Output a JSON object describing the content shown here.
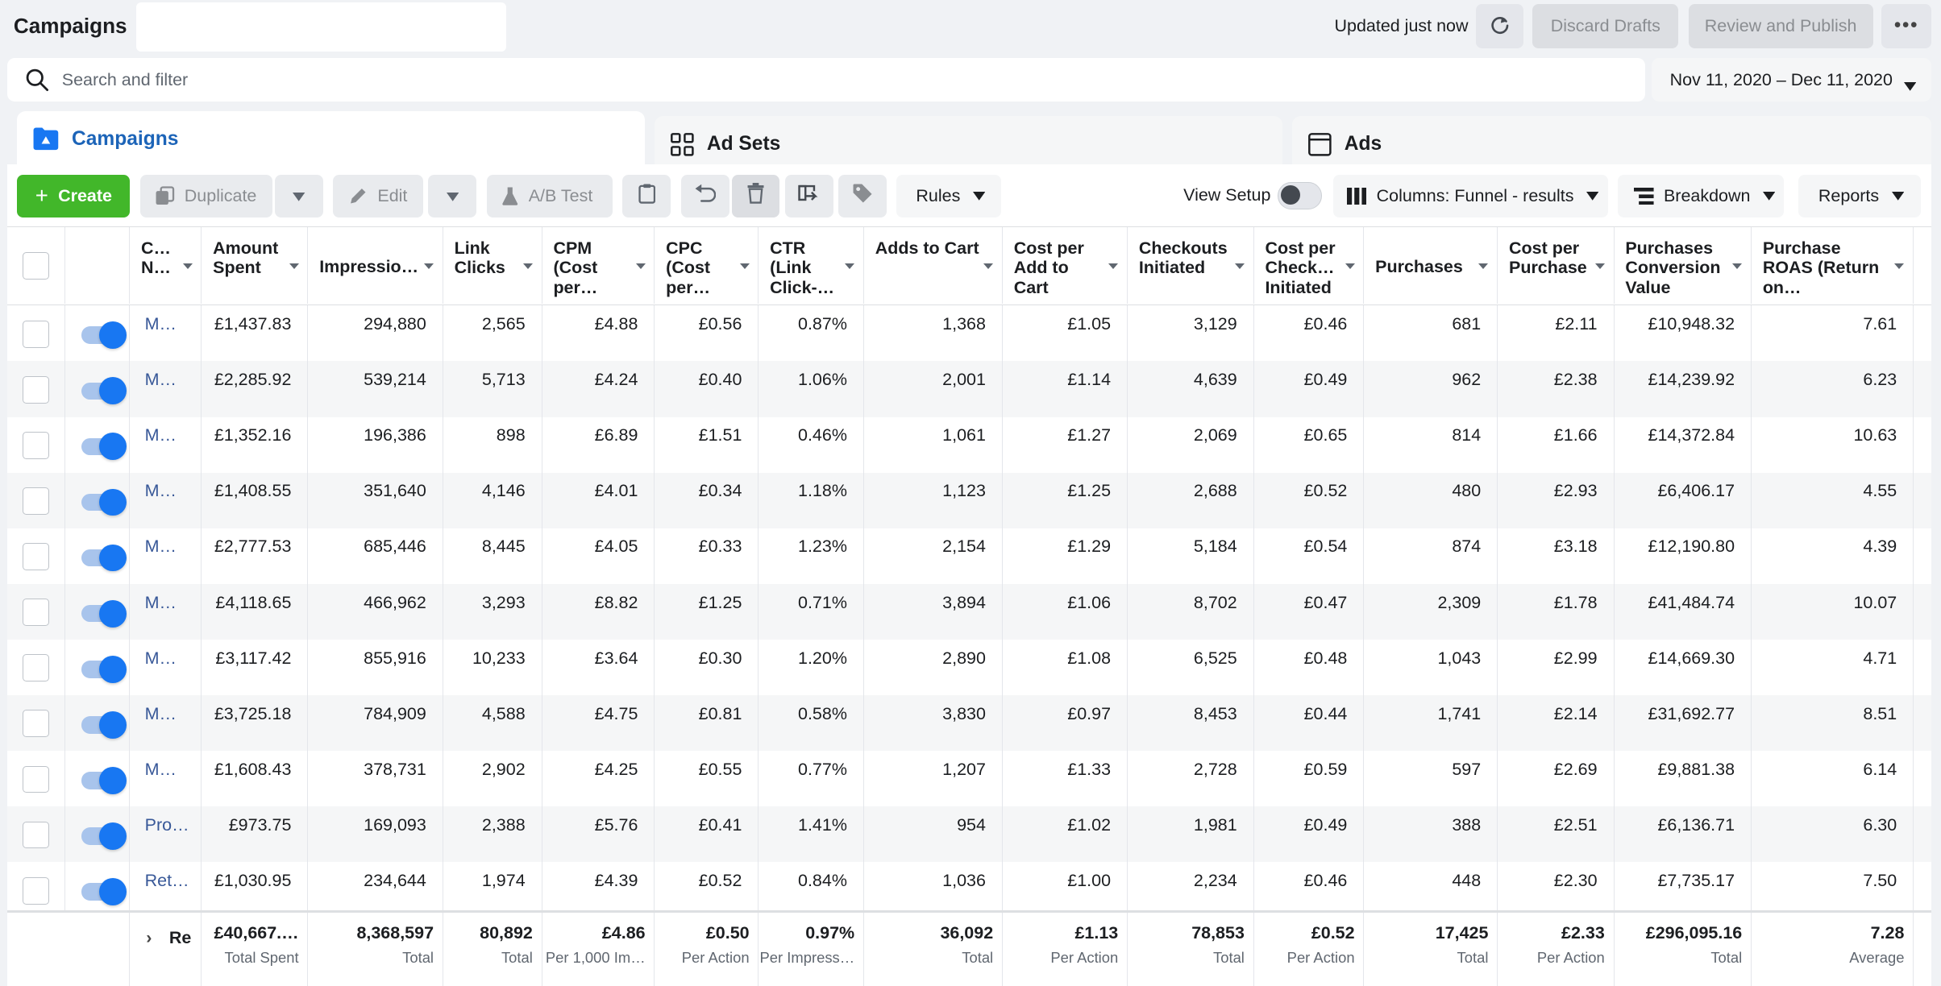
{
  "header": {
    "title": "Campaigns",
    "updated": "Updated just now",
    "discard_label": "Discard Drafts",
    "review_label": "Review and Publish",
    "more_label": "•••"
  },
  "search": {
    "placeholder": "Search and filter"
  },
  "date_range": "Nov 11, 2020 – Dec 11, 2020",
  "tabs": [
    {
      "label": "Campaigns",
      "icon": "folder-icon"
    },
    {
      "label": "Ad Sets",
      "icon": "grid-icon"
    },
    {
      "label": "Ads",
      "icon": "window-icon"
    }
  ],
  "toolbar": {
    "create": "Create",
    "duplicate": "Duplicate",
    "edit": "Edit",
    "ab_test": "A/B Test",
    "rules": "Rules",
    "view_setup": "View Setup",
    "columns": "Columns: Funnel - results",
    "breakdown": "Breakdown",
    "reports": "Reports"
  },
  "columns": [
    "C… N…",
    "Amount Spent",
    "Impressio…",
    "Link Clicks",
    "CPM (Cost per…",
    "CPC (Cost per…",
    "CTR (Link Click-…",
    "Adds to Cart",
    "Cost per Add to Cart",
    "Checkouts Initiated",
    "Cost per Check… Initiated",
    "Purchases",
    "Cost per Purchase",
    "Purchases Conversion Value",
    "Purchase ROAS (Return on…"
  ],
  "rows": [
    [
      "M…",
      "£1,437.83",
      "294,880",
      "2,565",
      "£4.88",
      "£0.56",
      "0.87%",
      "1,368",
      "£1.05",
      "3,129",
      "£0.46",
      "681",
      "£2.11",
      "£10,948.32",
      "7.61"
    ],
    [
      "M…",
      "£2,285.92",
      "539,214",
      "5,713",
      "£4.24",
      "£0.40",
      "1.06%",
      "2,001",
      "£1.14",
      "4,639",
      "£0.49",
      "962",
      "£2.38",
      "£14,239.92",
      "6.23"
    ],
    [
      "M…",
      "£1,352.16",
      "196,386",
      "898",
      "£6.89",
      "£1.51",
      "0.46%",
      "1,061",
      "£1.27",
      "2,069",
      "£0.65",
      "814",
      "£1.66",
      "£14,372.84",
      "10.63"
    ],
    [
      "M…",
      "£1,408.55",
      "351,640",
      "4,146",
      "£4.01",
      "£0.34",
      "1.18%",
      "1,123",
      "£1.25",
      "2,688",
      "£0.52",
      "480",
      "£2.93",
      "£6,406.17",
      "4.55"
    ],
    [
      "M…",
      "£2,777.53",
      "685,446",
      "8,445",
      "£4.05",
      "£0.33",
      "1.23%",
      "2,154",
      "£1.29",
      "5,184",
      "£0.54",
      "874",
      "£3.18",
      "£12,190.80",
      "4.39"
    ],
    [
      "M…",
      "£4,118.65",
      "466,962",
      "3,293",
      "£8.82",
      "£1.25",
      "0.71%",
      "3,894",
      "£1.06",
      "8,702",
      "£0.47",
      "2,309",
      "£1.78",
      "£41,484.74",
      "10.07"
    ],
    [
      "M…",
      "£3,117.42",
      "855,916",
      "10,233",
      "£3.64",
      "£0.30",
      "1.20%",
      "2,890",
      "£1.08",
      "6,525",
      "£0.48",
      "1,043",
      "£2.99",
      "£14,669.30",
      "4.71"
    ],
    [
      "M…",
      "£3,725.18",
      "784,909",
      "4,588",
      "£4.75",
      "£0.81",
      "0.58%",
      "3,830",
      "£0.97",
      "8,453",
      "£0.44",
      "1,741",
      "£2.14",
      "£31,692.77",
      "8.51"
    ],
    [
      "M…",
      "£1,608.43",
      "378,731",
      "2,902",
      "£4.25",
      "£0.55",
      "0.77%",
      "1,207",
      "£1.33",
      "2,728",
      "£0.59",
      "597",
      "£2.69",
      "£9,881.38",
      "6.14"
    ],
    [
      "Pro…",
      "£973.75",
      "169,093",
      "2,388",
      "£5.76",
      "£0.41",
      "1.41%",
      "954",
      "£1.02",
      "1,981",
      "£0.49",
      "388",
      "£2.51",
      "£6,136.71",
      "6.30"
    ],
    [
      "Ret…",
      "£1,030.95",
      "234,644",
      "1,974",
      "£4.39",
      "£0.52",
      "0.84%",
      "1,036",
      "£1.00",
      "2,234",
      "£0.46",
      "448",
      "£2.30",
      "£7,735.17",
      "7.50"
    ]
  ],
  "totals": {
    "row_label": "Re",
    "values": [
      {
        "v": "£40,667.…",
        "l": "Total Spent"
      },
      {
        "v": "8,368,597",
        "l": "Total"
      },
      {
        "v": "80,892",
        "l": "Total"
      },
      {
        "v": "£4.86",
        "l": "Per 1,000 Im…"
      },
      {
        "v": "£0.50",
        "l": "Per Action"
      },
      {
        "v": "0.97%",
        "l": "Per Impress…"
      },
      {
        "v": "36,092",
        "l": "Total"
      },
      {
        "v": "£1.13",
        "l": "Per Action"
      },
      {
        "v": "78,853",
        "l": "Total"
      },
      {
        "v": "£0.52",
        "l": "Per Action"
      },
      {
        "v": "17,425",
        "l": "Total"
      },
      {
        "v": "£2.33",
        "l": "Per Action"
      },
      {
        "v": "£296,095.16",
        "l": "Total"
      },
      {
        "v": "7.28",
        "l": "Average"
      }
    ]
  },
  "colors": {
    "accent": "#1877f2",
    "create_green": "#42b72a",
    "link": "#385898"
  }
}
